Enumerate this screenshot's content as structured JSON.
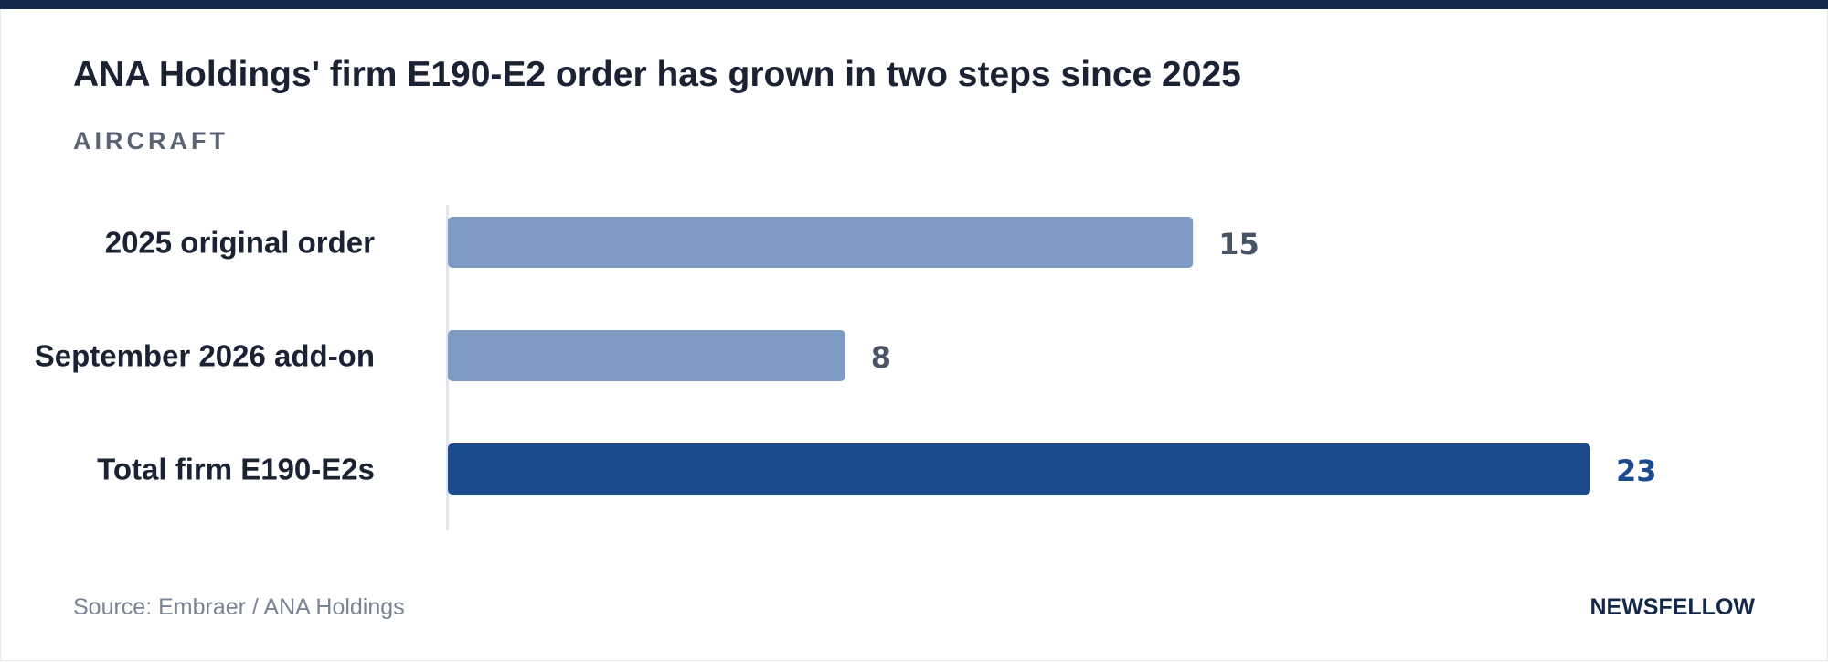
{
  "header": {
    "title": "ANA Holdings' firm E190-E2 order has grown in two steps since 2025",
    "subtitle": "AIRCRAFT"
  },
  "footer": {
    "source": "Source: Embraer / ANA Holdings",
    "brand": "NEWSFELLOW"
  },
  "colors": {
    "accent_bar": "#14284b",
    "component_bar": "#7e9bc4",
    "total_bar": "#1b4b8c",
    "component_value": "#4a5363",
    "total_value": "#1b4b8c"
  },
  "chart_data": {
    "type": "bar",
    "orientation": "horizontal",
    "categories": [
      "2025 original order",
      "September 2026 add-on",
      "Total firm E190-E2s"
    ],
    "values": [
      15,
      8,
      23
    ],
    "highlight": [
      false,
      false,
      true
    ],
    "xlim": [
      0,
      23
    ],
    "grid": false,
    "legend": "none"
  }
}
